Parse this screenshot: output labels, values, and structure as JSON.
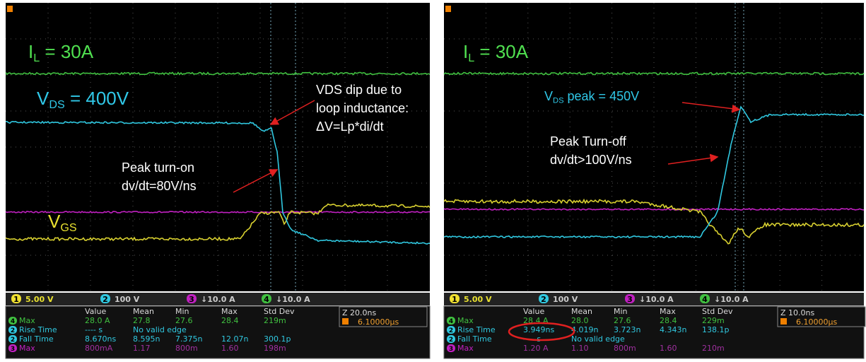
{
  "panels": [
    {
      "current_label": {
        "symbol": "I",
        "sub": "L",
        "rest": " = 30A"
      },
      "voltage_label": {
        "symbol": "V",
        "sub": "DS",
        "rest": " = 400V"
      },
      "gate_label": {
        "symbol": "V",
        "sub": "GS"
      },
      "annotations": [
        [
          "VDS dip due to",
          "loop inductance:",
          "ΔV=Lp*di/dt"
        ],
        [
          "Peak turn-on",
          "dv/dt=80V/ns"
        ]
      ],
      "channels": [
        {
          "number": "1",
          "setting": "5.00 V"
        },
        {
          "number": "2",
          "setting": "100 V"
        },
        {
          "number": "3",
          "setting": "↓10.0 A"
        },
        {
          "number": "4",
          "setting": "↓10.0 A"
        }
      ],
      "measurements": {
        "header": [
          "Value",
          "Mean",
          "Min",
          "Max",
          "Std Dev"
        ],
        "rows": [
          {
            "channel": "4",
            "name": "Max",
            "cells": [
              "28.0 A",
              "27.8",
              "27.6",
              "28.4",
              "219m"
            ]
          },
          {
            "channel": "2",
            "name": "Rise Time",
            "cells": [
              "---- s",
              "No valid edge"
            ]
          },
          {
            "channel": "2",
            "name": "Fall Time",
            "cells": [
              "8.670ns",
              "8.595n",
              "7.375n",
              "12.07n",
              "300.1p"
            ]
          },
          {
            "channel": "3",
            "name": "Max",
            "cells": [
              "800mA",
              "1.17",
              "800m",
              "1.60",
              "198m"
            ]
          }
        ]
      },
      "zoom": {
        "scale": "Z 20.0ns",
        "position": "6.10000µs"
      }
    },
    {
      "current_label": {
        "symbol": "I",
        "sub": "L",
        "rest": " = 30A"
      },
      "voltage_label": {
        "symbol": "V",
        "sub": "DS",
        "rest": " peak = 450V"
      },
      "annotations": [
        [
          "Peak Turn-off",
          "dv/dt>100V/ns"
        ]
      ],
      "channels": [
        {
          "number": "1",
          "setting": "5.00 V"
        },
        {
          "number": "2",
          "setting": "100 V"
        },
        {
          "number": "3",
          "setting": "↓10.0 A"
        },
        {
          "number": "4",
          "setting": "↓10.0 A"
        }
      ],
      "measurements": {
        "header": [
          "Value",
          "Mean",
          "Min",
          "Max",
          "Std Dev"
        ],
        "rows": [
          {
            "channel": "4",
            "name": "Max",
            "cells": [
              "28.4 A",
              "28.0",
              "27.6",
              "28.4",
              "229m"
            ]
          },
          {
            "channel": "2",
            "name": "Rise Time",
            "cells": [
              "3.949ns",
              "4.019n",
              "3.723n",
              "4.343n",
              "138.1p"
            ]
          },
          {
            "channel": "2",
            "name": "Fall Time",
            "cells": [
              "---- s",
              "No valid edge"
            ]
          },
          {
            "channel": "3",
            "name": "Max",
            "cells": [
              "1.20 A",
              "1.10",
              "800m",
              "1.60",
              "210m"
            ]
          }
        ]
      },
      "zoom": {
        "scale": "Z 10.0ns",
        "position": "6.10000µs"
      }
    }
  ]
}
